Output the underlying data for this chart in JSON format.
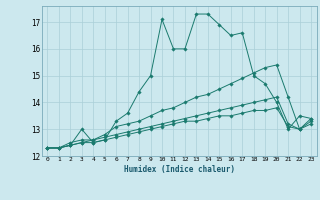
{
  "xlabel": "Humidex (Indice chaleur)",
  "ylabel": "",
  "background_color": "#cce8ee",
  "grid_color": "#aacfd8",
  "line_color": "#1a7a6e",
  "xlim": [
    -0.5,
    23.5
  ],
  "ylim": [
    12,
    17.6
  ],
  "yticks": [
    12,
    13,
    14,
    15,
    16,
    17
  ],
  "xticks": [
    0,
    1,
    2,
    3,
    4,
    5,
    6,
    7,
    8,
    9,
    10,
    11,
    12,
    13,
    14,
    15,
    16,
    17,
    18,
    19,
    20,
    21,
    22,
    23
  ],
  "lines": [
    [
      12.3,
      12.3,
      12.4,
      13.0,
      12.5,
      12.6,
      13.3,
      13.6,
      14.4,
      15.0,
      17.1,
      16.0,
      16.0,
      17.3,
      17.3,
      16.9,
      16.5,
      16.6,
      15.0,
      14.7,
      14.0,
      13.0,
      13.5,
      13.4
    ],
    [
      12.3,
      12.3,
      12.5,
      12.6,
      12.6,
      12.8,
      13.1,
      13.2,
      13.3,
      13.5,
      13.7,
      13.8,
      14.0,
      14.2,
      14.3,
      14.5,
      14.7,
      14.9,
      15.1,
      15.3,
      15.4,
      14.2,
      13.0,
      13.4
    ],
    [
      12.3,
      12.3,
      12.4,
      12.5,
      12.6,
      12.7,
      12.8,
      12.9,
      13.0,
      13.1,
      13.2,
      13.3,
      13.4,
      13.5,
      13.6,
      13.7,
      13.8,
      13.9,
      14.0,
      14.1,
      14.2,
      13.2,
      13.0,
      13.3
    ],
    [
      12.3,
      12.3,
      12.4,
      12.5,
      12.5,
      12.6,
      12.7,
      12.8,
      12.9,
      13.0,
      13.1,
      13.2,
      13.3,
      13.3,
      13.4,
      13.5,
      13.5,
      13.6,
      13.7,
      13.7,
      13.8,
      13.1,
      13.0,
      13.2
    ]
  ]
}
